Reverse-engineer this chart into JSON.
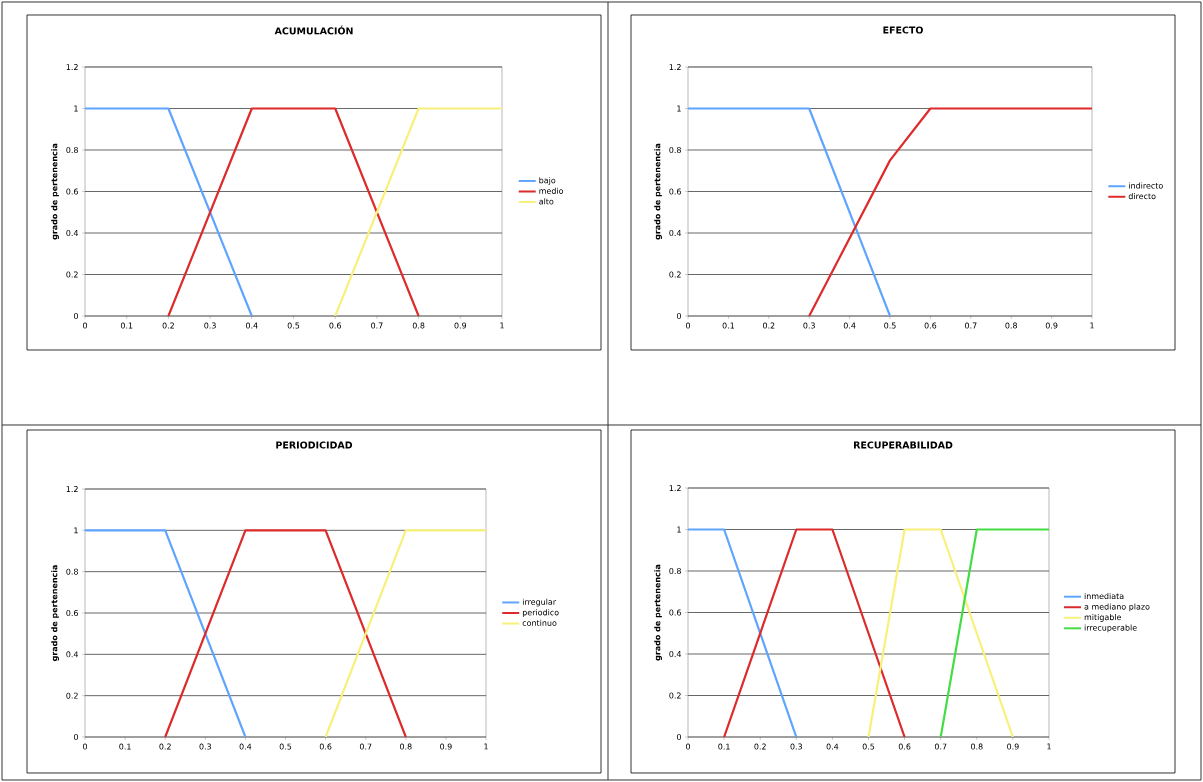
{
  "chart_data": [
    {
      "type": "line",
      "title": "ACUMULACIÓN",
      "ylabel": "grado de pertenencia",
      "xlim": [
        0,
        1
      ],
      "xticks": [
        0,
        0.1,
        0.2,
        0.3,
        0.4,
        0.5,
        0.6,
        0.7,
        0.8,
        0.9,
        1
      ],
      "ylim": [
        0,
        1.2
      ],
      "yticks": [
        0,
        0.2,
        0.4,
        0.6,
        0.8,
        1,
        1.2
      ],
      "grid": "y",
      "legend": "right",
      "series": [
        {
          "name": "bajo",
          "color": "#5fa5ff",
          "x": [
            0,
            0.2,
            0.4
          ],
          "values": [
            1,
            1,
            0
          ]
        },
        {
          "name": "medio",
          "color": "#dd2a2a",
          "x": [
            0.2,
            0.4,
            0.6,
            0.8
          ],
          "values": [
            0,
            1,
            1,
            0
          ]
        },
        {
          "name": "alto",
          "color": "#f8f07a",
          "x": [
            0.6,
            0.8,
            1
          ],
          "values": [
            0,
            1,
            1
          ]
        }
      ]
    },
    {
      "type": "line",
      "title": "EFECTO",
      "ylabel": "grado de pertenencia",
      "xlim": [
        0,
        1
      ],
      "xticks": [
        0,
        0.1,
        0.2,
        0.3,
        0.4,
        0.5,
        0.6,
        0.7,
        0.8,
        0.9,
        1
      ],
      "ylim": [
        0,
        1.2
      ],
      "yticks": [
        0,
        0.2,
        0.4,
        0.6,
        0.8,
        1,
        1.2
      ],
      "grid": "y",
      "legend": "right",
      "series": [
        {
          "name": "indirecto",
          "color": "#5fa5ff",
          "x": [
            0,
            0.3,
            0.5
          ],
          "values": [
            1,
            1,
            0
          ]
        },
        {
          "name": "directo",
          "color": "#dd2a2a",
          "x": [
            0.3,
            0.5,
            0.6,
            1
          ],
          "values": [
            0,
            0.75,
            1,
            1
          ]
        }
      ]
    },
    {
      "type": "line",
      "title": "PERIODICIDAD",
      "ylabel": "grado de pertenencia",
      "xlim": [
        0,
        1
      ],
      "xticks": [
        0,
        0.1,
        0.2,
        0.3,
        0.4,
        0.5,
        0.6,
        0.7,
        0.8,
        0.9,
        1
      ],
      "ylim": [
        0,
        1.2
      ],
      "yticks": [
        0,
        0.2,
        0.4,
        0.6,
        0.8,
        1,
        1.2
      ],
      "grid": "y",
      "legend": "right",
      "series": [
        {
          "name": "irregular",
          "color": "#5fa5ff",
          "x": [
            0,
            0.2,
            0.4
          ],
          "values": [
            1,
            1,
            0
          ]
        },
        {
          "name": "periodico",
          "color": "#dd2a2a",
          "x": [
            0.2,
            0.4,
            0.6,
            0.8
          ],
          "values": [
            0,
            1,
            1,
            0
          ]
        },
        {
          "name": "continuo",
          "color": "#f8f07a",
          "x": [
            0.6,
            0.8,
            1
          ],
          "values": [
            0,
            1,
            1
          ]
        }
      ]
    },
    {
      "type": "line",
      "title": "RECUPERABILIDAD",
      "ylabel": "grado de pertenencia",
      "xlim": [
        0,
        1
      ],
      "xticks": [
        0,
        0.1,
        0.2,
        0.3,
        0.4,
        0.5,
        0.6,
        0.7,
        0.8,
        0.9,
        1
      ],
      "ylim": [
        0,
        1.2
      ],
      "yticks": [
        0,
        0.2,
        0.4,
        0.6,
        0.8,
        1,
        1.2
      ],
      "grid": "y",
      "legend": "right",
      "series": [
        {
          "name": "inmediata",
          "color": "#5fa5ff",
          "x": [
            0,
            0.1,
            0.3
          ],
          "values": [
            1,
            1,
            0
          ]
        },
        {
          "name": "a mediano plazo",
          "color": "#dd2a2a",
          "x": [
            0.1,
            0.3,
            0.4,
            0.6
          ],
          "values": [
            0,
            1,
            1,
            0
          ]
        },
        {
          "name": "mitigable",
          "color": "#f8f07a",
          "x": [
            0.5,
            0.6,
            0.7,
            0.9
          ],
          "values": [
            0,
            1,
            1,
            0
          ]
        },
        {
          "name": "irrecuperable",
          "color": "#44dd44",
          "x": [
            0.7,
            0.8,
            1
          ],
          "values": [
            0,
            1,
            1
          ]
        }
      ]
    }
  ]
}
